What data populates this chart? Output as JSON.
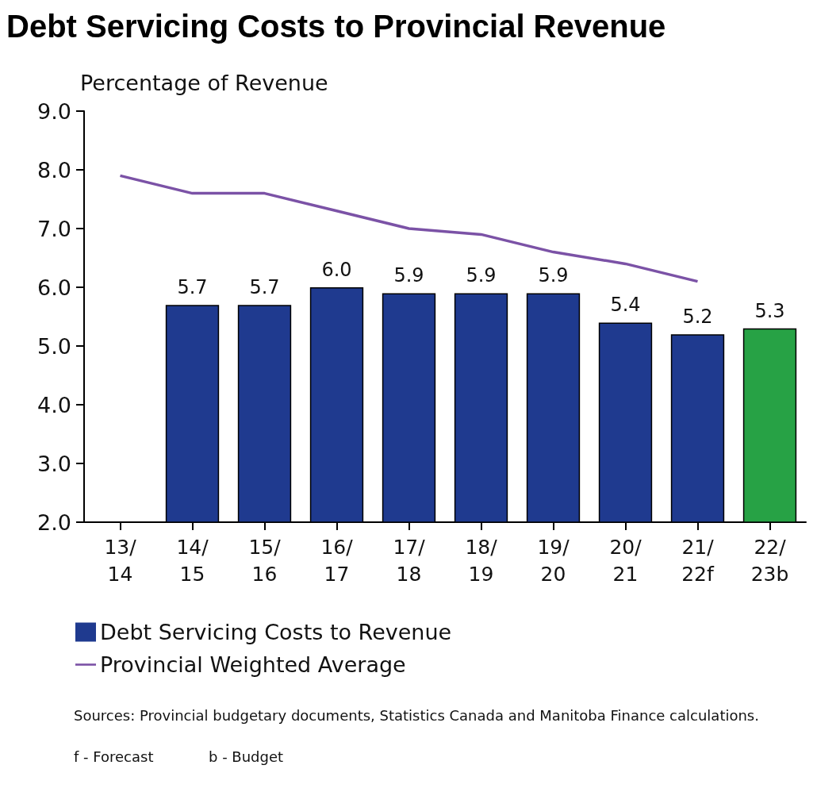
{
  "chart_data": {
    "type": "bar",
    "title": "Debt Servicing Costs to Provincial Revenue",
    "ylabel": "Percentage of Revenue",
    "categories": [
      "13/\n14",
      "14/\n15",
      "15/\n16",
      "16/\n17",
      "17/\n18",
      "18/\n19",
      "19/\n20",
      "20/\n21",
      "21/\n22f",
      "22/\n23b"
    ],
    "series": [
      {
        "name": "Debt Servicing Costs to Revenue",
        "color": "#1f3a8f",
        "colors": [
          "#1f3a8f",
          "#1f3a8f",
          "#1f3a8f",
          "#1f3a8f",
          "#1f3a8f",
          "#1f3a8f",
          "#1f3a8f",
          "#1f3a8f",
          "#1f3a8f",
          "#27a245"
        ],
        "values": [
          null,
          5.7,
          5.7,
          6.0,
          5.9,
          5.9,
          5.9,
          5.4,
          5.2,
          5.3
        ],
        "value_labels": [
          null,
          "5.7",
          "5.7",
          "6.0",
          "5.9",
          "5.9",
          "5.9",
          "5.4",
          "5.2",
          "5.3"
        ]
      },
      {
        "name": "Provincial Weighted Average",
        "type": "line",
        "color": "#7b52a6",
        "marker": "none",
        "values": [
          7.9,
          7.6,
          7.6,
          7.3,
          7.0,
          6.9,
          6.6,
          6.4,
          6.1,
          null
        ]
      }
    ],
    "ylim": [
      2,
      9
    ],
    "yticks": [
      {
        "value": 2,
        "label": "2.0"
      },
      {
        "value": 3,
        "label": "3.0"
      },
      {
        "value": 4,
        "label": "4.0"
      },
      {
        "value": 5,
        "label": "5.0"
      },
      {
        "value": 6,
        "label": "6.0"
      },
      {
        "value": 7,
        "label": "7.0"
      },
      {
        "value": 8,
        "label": "8.0"
      },
      {
        "value": 9,
        "label": "9.0"
      }
    ],
    "grid": false,
    "legend": "bottom left",
    "annotations": [
      "Sources: Provincial budgetary documents, Statistics Canada and Manitoba Finance calculations.",
      "f - Forecast",
      "b - Budget"
    ]
  }
}
